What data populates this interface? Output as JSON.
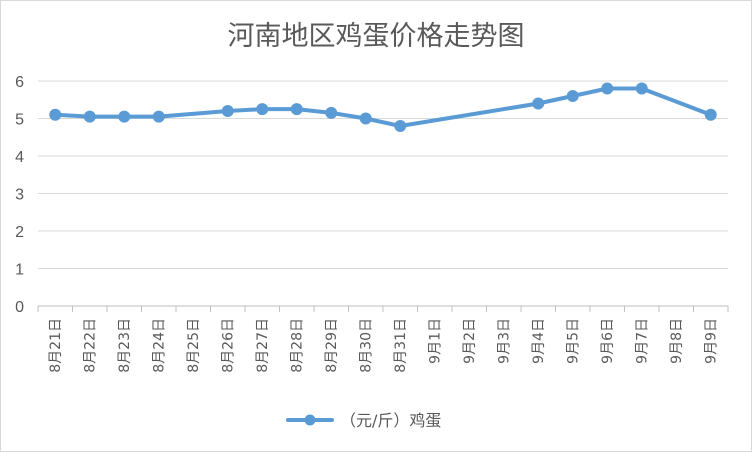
{
  "chart_data": {
    "type": "line",
    "title": "河南地区鸡蛋价格走势图",
    "xlabel": "",
    "ylabel": "",
    "ylim": [
      0,
      6
    ],
    "y_ticks": [
      "0",
      "1",
      "2",
      "3",
      "4",
      "5",
      "6"
    ],
    "categories": [
      "8月21日",
      "8月22日",
      "8月23日",
      "8月24日",
      "8月25日",
      "8月26日",
      "8月27日",
      "8月28日",
      "8月29日",
      "8月30日",
      "8月31日",
      "9月1日",
      "9月2日",
      "9月3日",
      "9月4日",
      "9月5日",
      "9月6日",
      "9月7日",
      "9月8日",
      "9月9日"
    ],
    "series": [
      {
        "name": "（元/斤）鸡蛋",
        "color": "#5b9bd5",
        "values": [
          5.1,
          5.05,
          5.05,
          5.05,
          null,
          5.2,
          5.25,
          5.25,
          5.15,
          5.0,
          4.8,
          null,
          null,
          null,
          5.4,
          5.6,
          5.8,
          5.8,
          null,
          5.1
        ]
      }
    ],
    "grid": true,
    "legend_position": "bottom",
    "gaps": "connect"
  }
}
